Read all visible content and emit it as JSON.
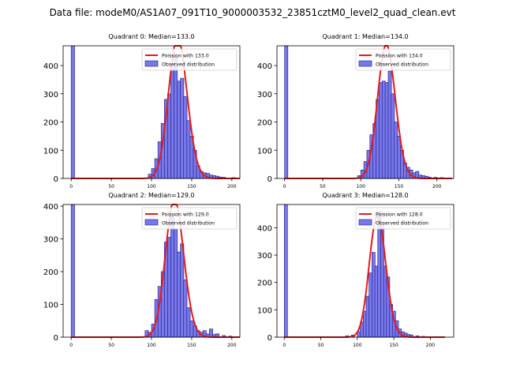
{
  "figure": {
    "suptitle": "Data file: modeM0/AS1A07_091T10_9000003532_23851cztM0_level2_quad_clean.evt"
  },
  "colors": {
    "bars": "#7878e8",
    "bar_edge": "#1a1a8c",
    "fit": "#e61a1a"
  },
  "chart_data": [
    {
      "type": "bar",
      "title": "Quadrant 0: Median=133.0",
      "median": 133.0,
      "xlim": [
        -10,
        210
      ],
      "ylim": [
        0,
        470
      ],
      "xticks": [
        0,
        50,
        100,
        150,
        200
      ],
      "yticks": [
        0,
        100,
        200,
        300,
        400
      ],
      "bin_width": 4.2,
      "bins": [
        {
          "x": 0,
          "count": 470
        },
        {
          "x": 96,
          "count": 15
        },
        {
          "x": 100,
          "count": 35
        },
        {
          "x": 104,
          "count": 70
        },
        {
          "x": 108,
          "count": 130
        },
        {
          "x": 112,
          "count": 195
        },
        {
          "x": 116,
          "count": 280
        },
        {
          "x": 120,
          "count": 300
        },
        {
          "x": 124,
          "count": 390
        },
        {
          "x": 128,
          "count": 430
        },
        {
          "x": 132,
          "count": 345
        },
        {
          "x": 136,
          "count": 355
        },
        {
          "x": 140,
          "count": 290
        },
        {
          "x": 144,
          "count": 205
        },
        {
          "x": 148,
          "count": 150
        },
        {
          "x": 152,
          "count": 100
        },
        {
          "x": 156,
          "count": 45
        },
        {
          "x": 160,
          "count": 25
        },
        {
          "x": 164,
          "count": 20
        },
        {
          "x": 168,
          "count": 18
        },
        {
          "x": 172,
          "count": 12
        },
        {
          "x": 176,
          "count": 10
        },
        {
          "x": 180,
          "count": 8
        },
        {
          "x": 184,
          "count": 5
        },
        {
          "x": 188,
          "count": 4
        },
        {
          "x": 200,
          "count": 3
        }
      ],
      "legend": {
        "fit_label": "Poission with 133.0",
        "obs_label": "Observed distribution"
      }
    },
    {
      "type": "bar",
      "title": "Quadrant 1: Median=134.0",
      "median": 134.0,
      "xlim": [
        -10,
        222
      ],
      "ylim": [
        0,
        470
      ],
      "xticks": [
        0,
        50,
        100,
        150,
        200
      ],
      "yticks": [
        0,
        100,
        200,
        300,
        400
      ],
      "bin_width": 4.3,
      "bins": [
        {
          "x": 0,
          "count": 470
        },
        {
          "x": 96,
          "count": 10
        },
        {
          "x": 100,
          "count": 30
        },
        {
          "x": 104,
          "count": 60
        },
        {
          "x": 108,
          "count": 100
        },
        {
          "x": 112,
          "count": 155
        },
        {
          "x": 116,
          "count": 195
        },
        {
          "x": 120,
          "count": 280
        },
        {
          "x": 124,
          "count": 340
        },
        {
          "x": 128,
          "count": 345
        },
        {
          "x": 132,
          "count": 340
        },
        {
          "x": 136,
          "count": 380
        },
        {
          "x": 140,
          "count": 300
        },
        {
          "x": 144,
          "count": 200
        },
        {
          "x": 148,
          "count": 150
        },
        {
          "x": 152,
          "count": 100
        },
        {
          "x": 156,
          "count": 55
        },
        {
          "x": 160,
          "count": 40
        },
        {
          "x": 164,
          "count": 30
        },
        {
          "x": 168,
          "count": 20
        },
        {
          "x": 172,
          "count": 25
        },
        {
          "x": 176,
          "count": 12
        },
        {
          "x": 180,
          "count": 10
        },
        {
          "x": 184,
          "count": 8
        },
        {
          "x": 188,
          "count": 5
        },
        {
          "x": 196,
          "count": 4
        },
        {
          "x": 204,
          "count": 3
        }
      ],
      "legend": {
        "fit_label": "Poission with 134.0",
        "obs_label": "Observed distribution"
      }
    },
    {
      "type": "bar",
      "title": "Quadrant 2: Median=129.0",
      "median": 129.0,
      "xlim": [
        -10,
        210
      ],
      "ylim": [
        0,
        405
      ],
      "xticks": [
        0,
        50,
        100,
        150,
        200
      ],
      "yticks": [
        0,
        100,
        200,
        300,
        400
      ],
      "bin_width": 4.2,
      "bins": [
        {
          "x": 0,
          "count": 405
        },
        {
          "x": 92,
          "count": 20
        },
        {
          "x": 96,
          "count": 15
        },
        {
          "x": 100,
          "count": 40
        },
        {
          "x": 104,
          "count": 115
        },
        {
          "x": 108,
          "count": 155
        },
        {
          "x": 112,
          "count": 200
        },
        {
          "x": 116,
          "count": 290
        },
        {
          "x": 120,
          "count": 305
        },
        {
          "x": 124,
          "count": 370
        },
        {
          "x": 128,
          "count": 330
        },
        {
          "x": 132,
          "count": 260
        },
        {
          "x": 136,
          "count": 285
        },
        {
          "x": 140,
          "count": 175
        },
        {
          "x": 144,
          "count": 90
        },
        {
          "x": 148,
          "count": 50
        },
        {
          "x": 152,
          "count": 35
        },
        {
          "x": 156,
          "count": 20
        },
        {
          "x": 160,
          "count": 15
        },
        {
          "x": 164,
          "count": 20
        },
        {
          "x": 168,
          "count": 10
        },
        {
          "x": 172,
          "count": 25
        },
        {
          "x": 176,
          "count": 8
        },
        {
          "x": 180,
          "count": 10
        },
        {
          "x": 188,
          "count": 5
        },
        {
          "x": 196,
          "count": 3
        }
      ],
      "legend": {
        "fit_label": "Poission with 129.0",
        "obs_label": "Observed distribution"
      }
    },
    {
      "type": "bar",
      "title": "Quadrant 3: Median=128.0",
      "median": 128.0,
      "xlim": [
        -10,
        232
      ],
      "ylim": [
        0,
        485
      ],
      "xticks": [
        0,
        50,
        100,
        150,
        200
      ],
      "yticks": [
        0,
        100,
        200,
        300,
        400
      ],
      "bin_width": 4.4,
      "bins": [
        {
          "x": 0,
          "count": 485
        },
        {
          "x": 84,
          "count": 5
        },
        {
          "x": 92,
          "count": 8
        },
        {
          "x": 100,
          "count": 20
        },
        {
          "x": 104,
          "count": 55
        },
        {
          "x": 108,
          "count": 95
        },
        {
          "x": 112,
          "count": 150
        },
        {
          "x": 116,
          "count": 235
        },
        {
          "x": 120,
          "count": 310
        },
        {
          "x": 124,
          "count": 260
        },
        {
          "x": 128,
          "count": 460
        },
        {
          "x": 132,
          "count": 410
        },
        {
          "x": 136,
          "count": 260
        },
        {
          "x": 140,
          "count": 220
        },
        {
          "x": 144,
          "count": 120
        },
        {
          "x": 148,
          "count": 95
        },
        {
          "x": 152,
          "count": 60
        },
        {
          "x": 156,
          "count": 30
        },
        {
          "x": 160,
          "count": 20
        },
        {
          "x": 164,
          "count": 15
        },
        {
          "x": 168,
          "count": 10
        },
        {
          "x": 172,
          "count": 8
        },
        {
          "x": 180,
          "count": 5
        },
        {
          "x": 188,
          "count": 3
        }
      ],
      "legend": {
        "fit_label": "Poission with 128.0",
        "obs_label": "Observed distribution"
      }
    }
  ]
}
